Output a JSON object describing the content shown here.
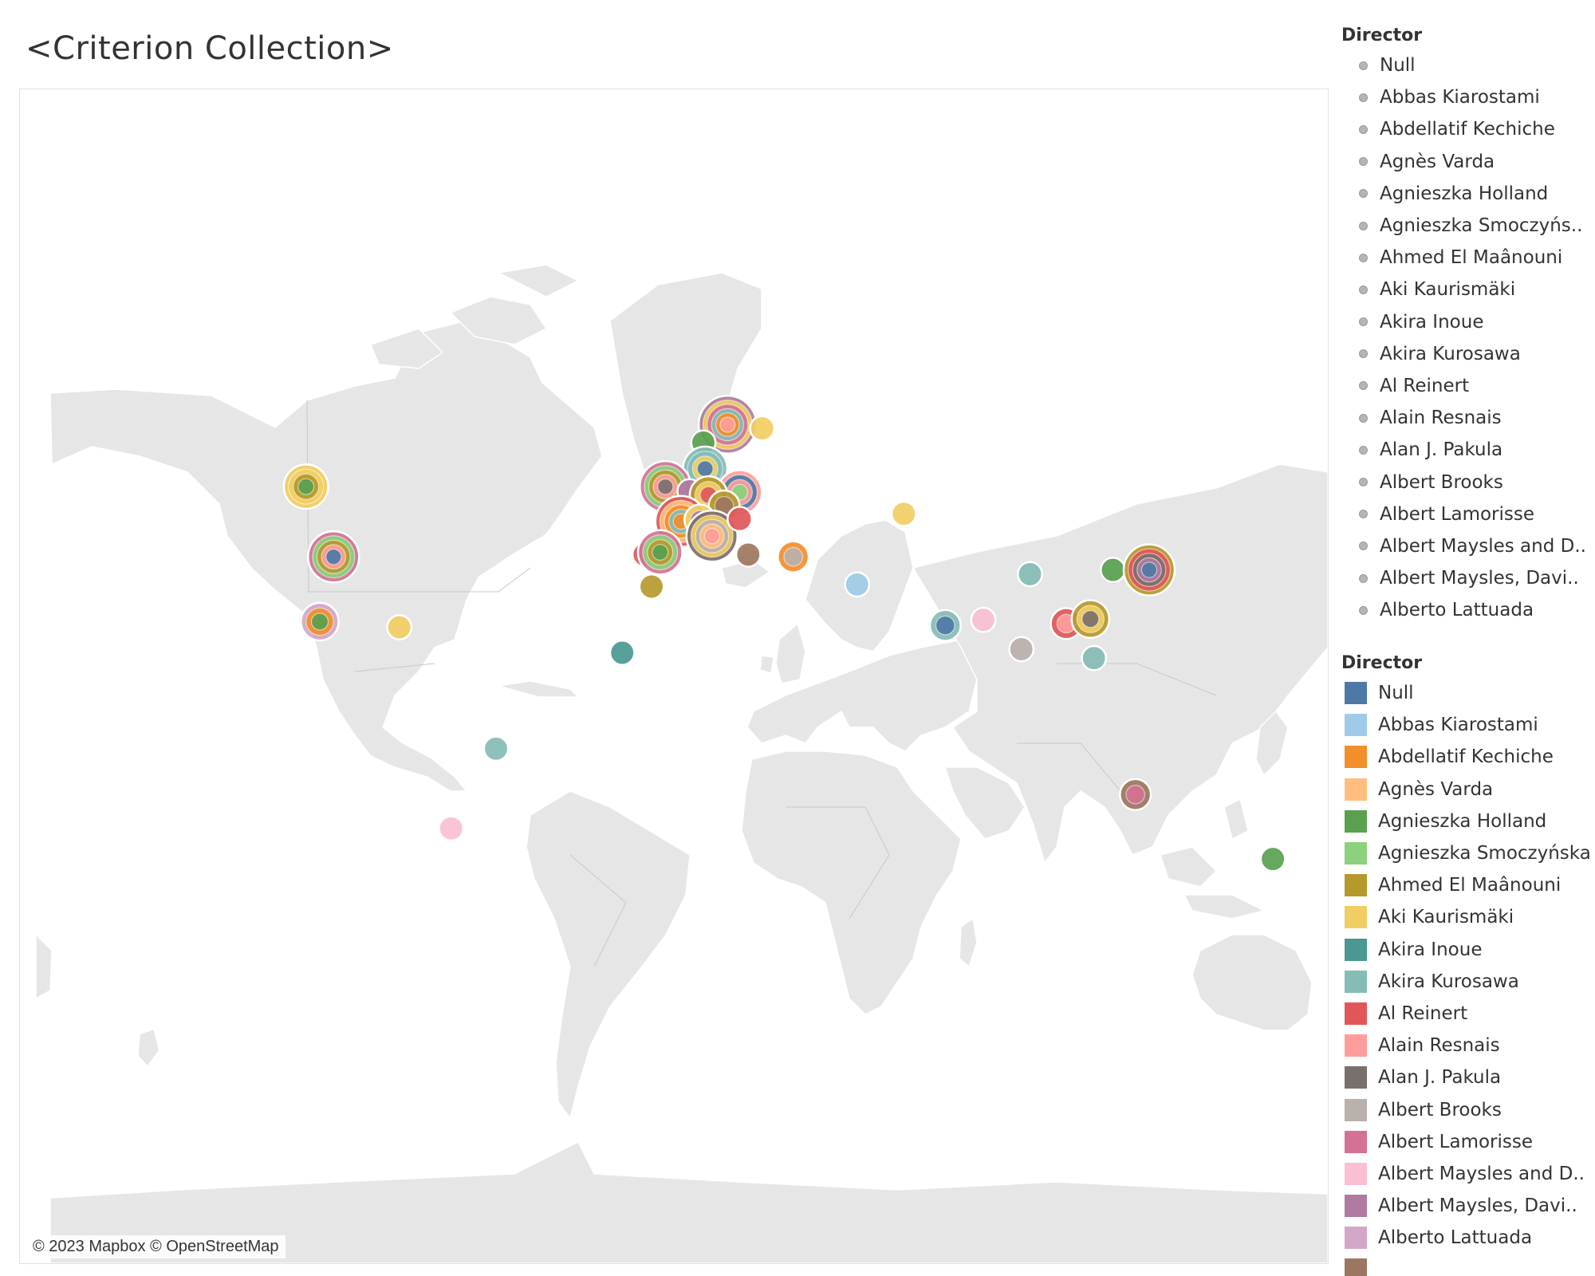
{
  "title": "<Criterion Collection>",
  "map": {
    "copyright": "© 2023 Mapbox © OpenStreetMap",
    "land_color": "#e6e6e6",
    "border_color": "#c8c8c8"
  },
  "legend_shape": {
    "title": "Director",
    "items": [
      "Null",
      "Abbas Kiarostami",
      "Abdellatif Kechiche",
      "Agnès Varda",
      "Agnieszka Holland",
      "Agnieszka Smoczyńs..",
      "Ahmed El Maânouni",
      "Aki Kaurismäki",
      "Akira Inoue",
      "Akira Kurosawa",
      "Al Reinert",
      "Alain Resnais",
      "Alan J. Pakula",
      "Albert Brooks",
      "Albert Lamorisse",
      "Albert Maysles and D..",
      "Albert Maysles, Davi..",
      "Alberto Lattuada"
    ]
  },
  "legend_color": {
    "title": "Director",
    "items": [
      {
        "label": "Null",
        "color": "#4e79a7"
      },
      {
        "label": "Abbas Kiarostami",
        "color": "#a0cbe8"
      },
      {
        "label": "Abdellatif Kechiche",
        "color": "#f28e2b"
      },
      {
        "label": "Agnès Varda",
        "color": "#ffbe7d"
      },
      {
        "label": "Agnieszka Holland",
        "color": "#59a14f"
      },
      {
        "label": "Agnieszka Smoczyńska",
        "color": "#8cd17d"
      },
      {
        "label": "Ahmed El Maânouni",
        "color": "#b6992d"
      },
      {
        "label": "Aki Kaurismäki",
        "color": "#f1ce63"
      },
      {
        "label": "Akira Inoue",
        "color": "#499894"
      },
      {
        "label": "Akira Kurosawa",
        "color": "#86bcb6"
      },
      {
        "label": "Al Reinert",
        "color": "#e15759"
      },
      {
        "label": "Alain Resnais",
        "color": "#ff9d9a"
      },
      {
        "label": "Alan J. Pakula",
        "color": "#79706e"
      },
      {
        "label": "Albert Brooks",
        "color": "#bab0ac"
      },
      {
        "label": "Albert Lamorisse",
        "color": "#d37295"
      },
      {
        "label": "Albert Maysles and D..",
        "color": "#fabfd2"
      },
      {
        "label": "Albert Maysles, Davi..",
        "color": "#b07aa1"
      },
      {
        "label": "Alberto Lattuada",
        "color": "#d4a6c8"
      },
      {
        "label": "",
        "color": "#9d7660"
      }
    ]
  },
  "map_points": [
    {
      "place": "Canada",
      "lat": 53,
      "lon": -106,
      "rings": [
        "#f1ce63",
        "#f1ce63",
        "#b6992d",
        "#59a14f"
      ]
    },
    {
      "place": "United States",
      "lat": 39,
      "lon": -98,
      "rings": [
        "#d37295",
        "#8cd17d",
        "#b6992d",
        "#ff9d9a",
        "#4e79a7"
      ]
    },
    {
      "place": "Mexico",
      "lat": 23,
      "lon": -102,
      "rings": [
        "#d4a6c8",
        "#f28e2b",
        "#59a14f"
      ]
    },
    {
      "place": "Cuba",
      "lat": 21.5,
      "lon": -79,
      "rings": [
        "#f1ce63"
      ]
    },
    {
      "place": "Brazil",
      "lat": -13,
      "lon": -51,
      "rings": [
        "#86bcb6"
      ]
    },
    {
      "place": "Argentina",
      "lat": -34,
      "lon": -64,
      "rings": [
        "#fabfd2"
      ]
    },
    {
      "place": "New Zealand",
      "lat": -41,
      "lon": 173.8,
      "rings": [
        "#59a14f"
      ]
    },
    {
      "place": "Sweden",
      "lat": 62.5,
      "lon": 16,
      "rings": [
        "#b07aa1",
        "#f1ce63",
        "#d37295",
        "#86bcb6",
        "#f28e2b",
        "#ff9d9a"
      ]
    },
    {
      "place": "Finland",
      "lat": 62,
      "lon": 26,
      "rings": [
        "#f1ce63"
      ]
    },
    {
      "place": "Norway",
      "lat": 60,
      "lon": 9,
      "rings": [
        "#59a14f"
      ]
    },
    {
      "place": "Denmark",
      "lat": 56,
      "lon": 9.5,
      "rings": [
        "#86bcb6",
        "#86bcb6",
        "#f1ce63",
        "#4e79a7"
      ]
    },
    {
      "place": "Poland",
      "lat": 52,
      "lon": 19.5,
      "rings": [
        "#ff9d9a",
        "#4e79a7",
        "#ff9d9a",
        "#8cd17d"
      ]
    },
    {
      "place": "United Kingdom",
      "lat": 53,
      "lon": -2,
      "rings": [
        "#d37295",
        "#8cd17d",
        "#b6992d",
        "#ff9d9a",
        "#79706e"
      ]
    },
    {
      "place": "Netherlands",
      "lat": 52.2,
      "lon": 5,
      "rings": [
        "#b07aa1"
      ]
    },
    {
      "place": "Germany",
      "lat": 51.5,
      "lon": 10.5,
      "rings": [
        "#b6992d",
        "#f1ce63",
        "#e15759"
      ]
    },
    {
      "place": "Czechia",
      "lat": 49.5,
      "lon": 15,
      "rings": [
        "#b6992d",
        "#9d7660"
      ]
    },
    {
      "place": "France",
      "lat": 46.5,
      "lon": 2.5,
      "rings": [
        "#e15759",
        "#ffbe7d",
        "#f28e2b",
        "#86bcb6",
        "#f28e2b"
      ]
    },
    {
      "place": "Switzerland",
      "lat": 46.8,
      "lon": 8,
      "rings": [
        "#f1ce63",
        "#b07aa1"
      ]
    },
    {
      "place": "Italy",
      "lat": 43.5,
      "lon": 11.5,
      "rings": [
        "#79706e",
        "#f1ce63",
        "#bab0ac",
        "#ffbe7d",
        "#ff9d9a"
      ]
    },
    {
      "place": "Hungary",
      "lat": 47,
      "lon": 19.5,
      "rings": [
        "#e15759"
      ]
    },
    {
      "place": "Greece",
      "lat": 39.5,
      "lon": 22,
      "rings": [
        "#9d7660"
      ]
    },
    {
      "place": "Turkey",
      "lat": 39,
      "lon": 35,
      "rings": [
        "#f28e2b",
        "#bab0ac"
      ]
    },
    {
      "place": "Portugal",
      "lat": 39.5,
      "lon": -8,
      "rings": [
        "#e15759"
      ]
    },
    {
      "place": "Spain",
      "lat": 40,
      "lon": -3.5,
      "rings": [
        "#d37295",
        "#8cd17d",
        "#b6992d",
        "#59a14f"
      ]
    },
    {
      "place": "Morocco",
      "lat": 32,
      "lon": -6,
      "rings": [
        "#b6992d"
      ]
    },
    {
      "place": "Senegal",
      "lat": 14.5,
      "lon": -14.5,
      "rings": [
        "#499894"
      ]
    },
    {
      "place": "Kazakhstan",
      "lat": 48,
      "lon": 67,
      "rings": [
        "#f1ce63"
      ]
    },
    {
      "place": "Iran",
      "lat": 32.5,
      "lon": 53.5,
      "rings": [
        "#a0cbe8"
      ]
    },
    {
      "place": "China",
      "lat": 35,
      "lon": 103.5,
      "rings": [
        "#86bcb6"
      ]
    },
    {
      "place": "India",
      "lat": 22,
      "lon": 79,
      "rings": [
        "#86bcb6",
        "#4e79a7"
      ]
    },
    {
      "place": "Bangladesh",
      "lat": 23.5,
      "lon": 90,
      "rings": [
        "#fabfd2"
      ]
    },
    {
      "place": "Thailand",
      "lat": 15.5,
      "lon": 101,
      "rings": [
        "#bab0ac"
      ]
    },
    {
      "place": "Hong Kong",
      "lat": 22.5,
      "lon": 114,
      "rings": [
        "#e15759",
        "#ff9d9a"
      ]
    },
    {
      "place": "Taiwan",
      "lat": 23.7,
      "lon": 121,
      "rings": [
        "#b6992d",
        "#f1ce63",
        "#79706e"
      ]
    },
    {
      "place": "Philippines",
      "lat": 13,
      "lon": 122,
      "rings": [
        "#86bcb6"
      ]
    },
    {
      "place": "South Korea",
      "lat": 36,
      "lon": 127.5,
      "rings": [
        "#59a14f"
      ]
    },
    {
      "place": "Japan",
      "lat": 36,
      "lon": 138,
      "rings": [
        "#b6992d",
        "#e15759",
        "#79706e",
        "#b07aa1",
        "#4e79a7"
      ]
    },
    {
      "place": "Australia",
      "lat": -25.5,
      "lon": 134,
      "rings": [
        "#9d7660",
        "#d37295"
      ]
    }
  ]
}
